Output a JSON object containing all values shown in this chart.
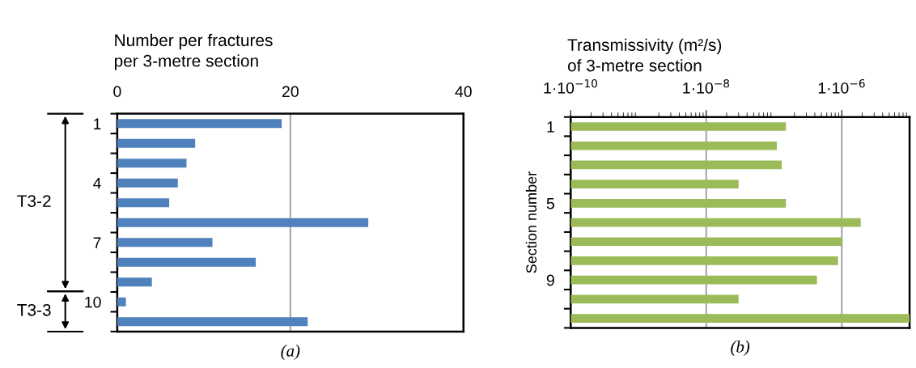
{
  "chart_data": [
    {
      "type": "bar",
      "orientation": "horizontal",
      "title": "Number per fractures\nper 3-metre section",
      "categories": [
        "1",
        null,
        null,
        "4",
        null,
        null,
        "7",
        null,
        null,
        "10",
        null
      ],
      "values": [
        19,
        9,
        8,
        7,
        6,
        29,
        11,
        16,
        4,
        1,
        22
      ],
      "color": "#4f81bd",
      "xlim": [
        0,
        40
      ],
      "xticks": [
        0,
        20,
        40
      ],
      "grid": "x",
      "annotations": [
        "(a)",
        "T3-2",
        "T3-3"
      ]
    },
    {
      "type": "bar",
      "orientation": "horizontal",
      "title": "Transmissivity (m²/s)\nof 3-metre section",
      "ylabel": "Section number",
      "categories": [
        "1",
        null,
        null,
        null,
        "5",
        null,
        null,
        null,
        "9",
        null,
        null
      ],
      "values": [
        1.5e-07,
        1.1e-07,
        1.3e-07,
        3e-08,
        1.5e-07,
        1.9e-06,
        1e-06,
        8.8e-07,
        4.3e-07,
        3e-08,
        1e-05
      ],
      "color": "#9bbb59",
      "log": "x",
      "xlim": [
        1e-10,
        1e-05
      ],
      "xticks": [
        {
          "value": 1e-10,
          "label": "1·10$^{−10}$"
        },
        {
          "value": 1e-08,
          "label": "1·10$^{−8}$"
        },
        {
          "value": 1e-06,
          "label": "1·10$^{−6}$"
        }
      ],
      "grid": "x",
      "annotations": [
        "(b)"
      ]
    }
  ]
}
